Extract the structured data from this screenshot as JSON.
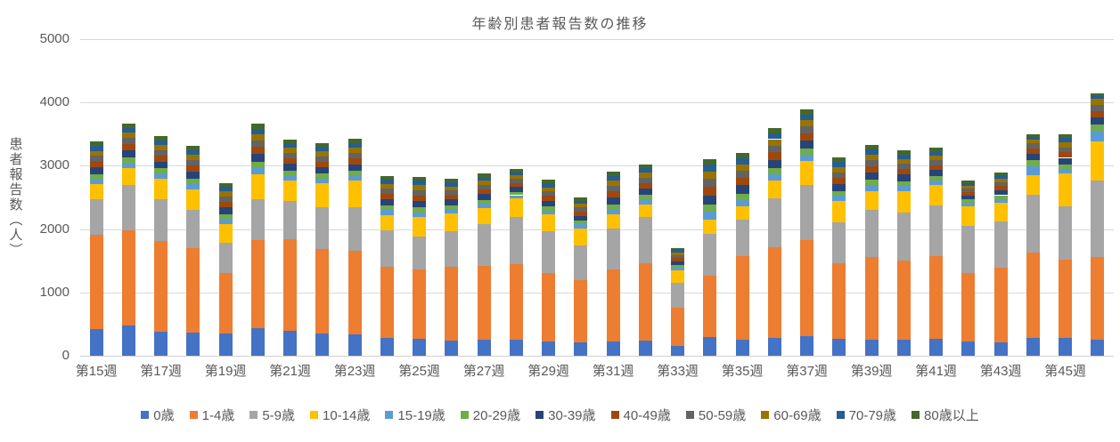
{
  "title": "年齢別患者報告数の推移",
  "y_axis": {
    "title": "患者報告数（人）",
    "ticks": [
      "0",
      "1000",
      "2000",
      "3000",
      "4000",
      "5000"
    ]
  },
  "x_axis": {
    "tick_labels": [
      "第15週",
      "第17週",
      "第19週",
      "第21週",
      "第23週",
      "第25週",
      "第27週",
      "第29週",
      "第31週",
      "第33週",
      "第35週",
      "第37週",
      "第39週",
      "第41週",
      "第43週",
      "第45週"
    ]
  },
  "colors": {
    "text": "#595959",
    "gridline": "#d9d9d9",
    "background": "#ffffff"
  },
  "chart_data": {
    "type": "bar",
    "stacked": true,
    "title": "年齢別患者報告数の推移",
    "xlabel": "",
    "ylabel": "患者報告数（人）",
    "ylim": [
      0,
      5000
    ],
    "y_tick_interval": 1000,
    "grid": true,
    "legend_position": "bottom",
    "categories": [
      "第15週",
      "第16週",
      "第17週",
      "第18週",
      "第19週",
      "第20週",
      "第21週",
      "第22週",
      "第23週",
      "第24週",
      "第25週",
      "第26週",
      "第27週",
      "第28週",
      "第29週",
      "第30週",
      "第31週",
      "第32週",
      "第33週",
      "第34週",
      "第35週",
      "第36週",
      "第37週",
      "第38週",
      "第39週",
      "第40週",
      "第41週",
      "第42週",
      "第43週",
      "第44週",
      "第45週",
      "第46週"
    ],
    "series": [
      {
        "name": "0歳",
        "color": "#4472C4",
        "values": [
          425,
          480,
          385,
          370,
          345,
          435,
          395,
          355,
          340,
          280,
          265,
          235,
          255,
          255,
          225,
          205,
          225,
          240,
          155,
          290,
          255,
          275,
          315,
          270,
          255,
          250,
          270,
          220,
          215,
          285,
          275,
          255
        ]
      },
      {
        "name": "1-4歳",
        "color": "#ED7D31",
        "values": [
          1480,
          1500,
          1425,
          1335,
          955,
          1385,
          1445,
          1325,
          1320,
          1125,
          1100,
          1165,
          1165,
          1190,
          1080,
          985,
          1140,
          1220,
          605,
          980,
          1320,
          1440,
          1505,
          1185,
          1300,
          1255,
          1305,
          1090,
          1170,
          1350,
          1235,
          1305
        ]
      },
      {
        "name": "5-9歳",
        "color": "#A5A5A5",
        "values": [
          560,
          710,
          660,
          600,
          480,
          655,
          605,
          660,
          690,
          570,
          520,
          570,
          665,
          745,
          665,
          550,
          650,
          725,
          385,
          650,
          580,
          770,
          875,
          655,
          750,
          750,
          800,
          740,
          735,
          905,
          855,
          1205
        ]
      },
      {
        "name": "10-14歳",
        "color": "#FFC000",
        "values": [
          245,
          270,
          330,
          320,
          305,
          395,
          320,
          385,
          410,
          250,
          305,
          280,
          245,
          290,
          260,
          275,
          215,
          205,
          210,
          235,
          200,
          275,
          375,
          335,
          295,
          350,
          320,
          315,
          295,
          315,
          510,
          625
        ]
      },
      {
        "name": "15-19歳",
        "color": "#5B9BD5",
        "values": [
          80,
          85,
          80,
          85,
          80,
          95,
          80,
          75,
          80,
          75,
          75,
          65,
          65,
          55,
          65,
          60,
          80,
          75,
          40,
          115,
          100,
          100,
          100,
          80,
          90,
          75,
          70,
          50,
          60,
          135,
          75,
          170
        ]
      },
      {
        "name": "20-29歳",
        "color": "#70AD47",
        "values": [
          80,
          85,
          80,
          85,
          75,
          95,
          80,
          75,
          80,
          75,
          75,
          65,
          65,
          55,
          65,
          60,
          80,
          75,
          40,
          115,
          100,
          100,
          100,
          80,
          90,
          75,
          70,
          50,
          60,
          100,
          75,
          85
        ]
      },
      {
        "name": "30-39歳",
        "color": "#264478",
        "values": [
          105,
          115,
          105,
          110,
          105,
          125,
          105,
          100,
          105,
          95,
          100,
          85,
          90,
          75,
          90,
          75,
          110,
          100,
          55,
          150,
          135,
          135,
          130,
          110,
          115,
          105,
          95,
          65,
          75,
          95,
          100,
          115
        ]
      },
      {
        "name": "40-49歳",
        "color": "#9E480E",
        "values": [
          95,
          100,
          95,
          95,
          90,
          110,
          90,
          90,
          95,
          85,
          90,
          75,
          75,
          65,
          75,
          70,
          95,
          90,
          50,
          135,
          120,
          115,
          115,
          95,
          100,
          90,
          80,
          55,
          70,
          85,
          85,
          105
        ]
      },
      {
        "name": "50-59歳",
        "color": "#636363",
        "values": [
          85,
          90,
          85,
          90,
          85,
          105,
          85,
          85,
          85,
          80,
          85,
          70,
          70,
          60,
          70,
          60,
          90,
          85,
          45,
          125,
          110,
          110,
          105,
          90,
          95,
          85,
          75,
          50,
          60,
          80,
          80,
          100
        ]
      },
      {
        "name": "60-69歳",
        "color": "#997300",
        "values": [
          80,
          85,
          80,
          80,
          75,
          95,
          75,
          75,
          80,
          75,
          75,
          65,
          65,
          55,
          65,
          60,
          80,
          75,
          40,
          115,
          100,
          100,
          95,
          80,
          85,
          75,
          70,
          50,
          60,
          60,
          75,
          90
        ]
      },
      {
        "name": "70-79歳",
        "color": "#255E91",
        "values": [
          75,
          80,
          75,
          75,
          70,
          85,
          70,
          70,
          75,
          65,
          70,
          60,
          60,
          50,
          60,
          50,
          75,
          70,
          40,
          105,
          95,
          90,
          90,
          75,
          80,
          70,
          65,
          40,
          50,
          50,
          70,
          45
        ]
      },
      {
        "name": "80歳以上",
        "color": "#43682B",
        "values": [
          70,
          70,
          70,
          70,
          65,
          80,
          65,
          65,
          70,
          60,
          65,
          55,
          55,
          50,
          55,
          50,
          70,
          65,
          40,
          95,
          90,
          85,
          80,
          75,
          75,
          65,
          60,
          40,
          50,
          40,
          60,
          40
        ]
      }
    ]
  }
}
